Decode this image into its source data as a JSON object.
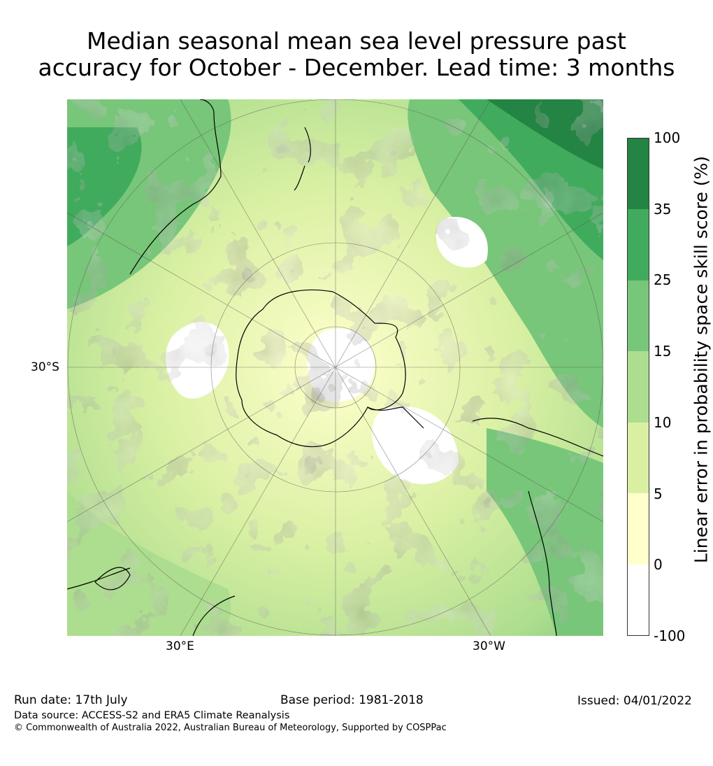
{
  "title_line1": "Median seasonal mean sea level pressure past",
  "title_line2": "accuracy for October - December. Lead time: 3 months",
  "axes": {
    "lat_label": "30°S",
    "lon_label_left": "30°E",
    "lon_label_right": "30°W"
  },
  "colorbar": {
    "title": "Linear error in probability space skill score (%)",
    "ticks": [
      "100",
      "35",
      "25",
      "15",
      "10",
      "5",
      "0",
      "-100"
    ],
    "colors": [
      "#238443",
      "#41ab5d",
      "#78c679",
      "#addd8e",
      "#d9f0a3",
      "#ffffcc",
      "#ffffff"
    ]
  },
  "footer": {
    "run_date": "Run date: 17th July",
    "base_period": "Base period: 1981-2018",
    "issued": "Issued: 04/01/2022",
    "data_source": "Data source: ACCESS-S2 and ERA5 Climate Reanalysis",
    "copyright": "© Commonwealth of Australia 2022, Australian Bureau of Meteorology, Supported by COSPPac"
  }
}
